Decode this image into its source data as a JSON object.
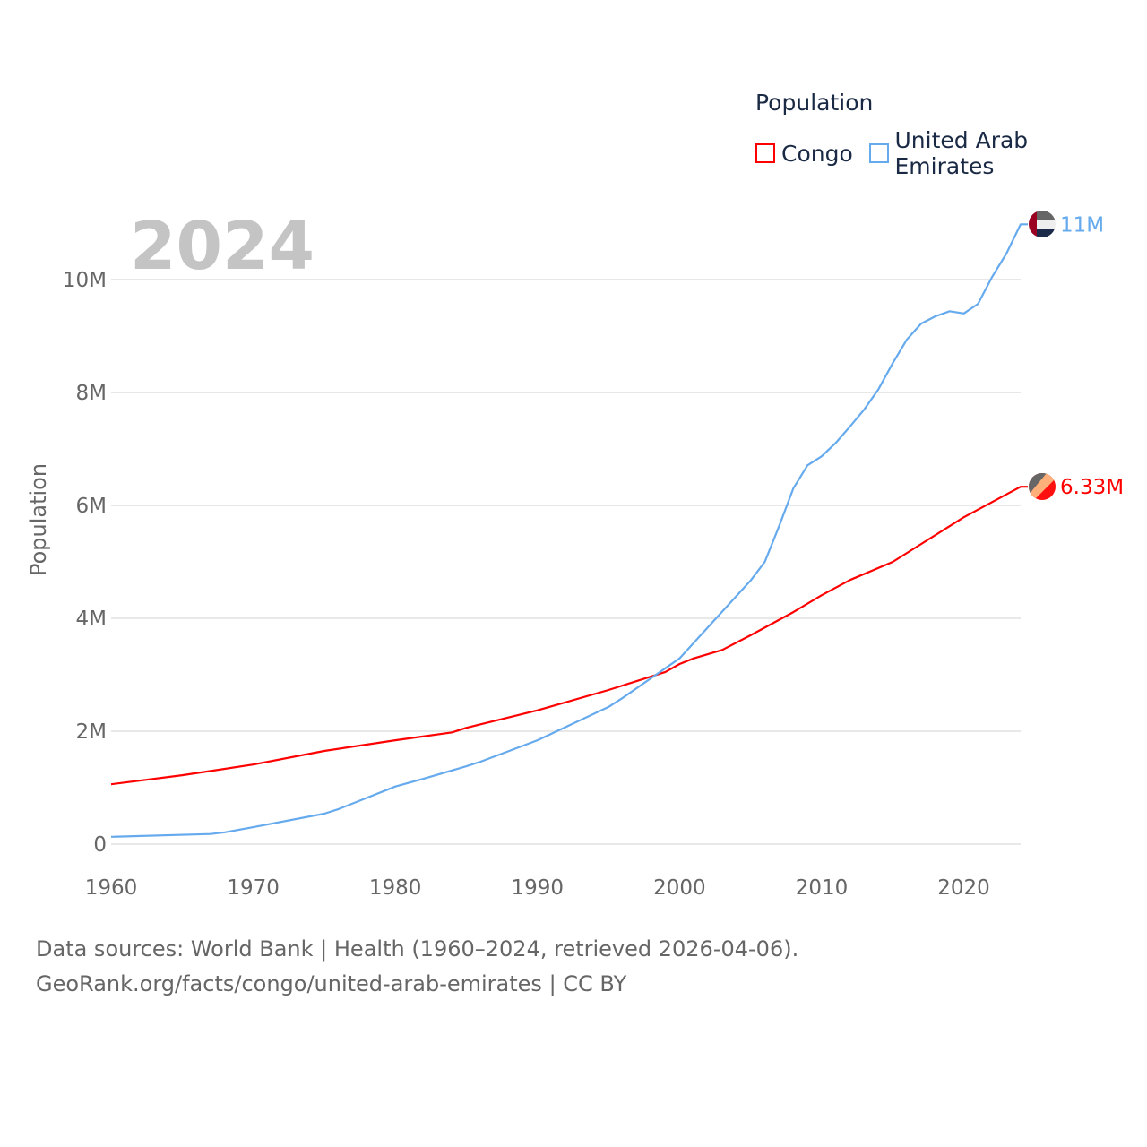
{
  "chart_data": {
    "type": "line",
    "title": "Population",
    "current_year_label": "2024",
    "ylabel": "Population",
    "xlabel": "",
    "xlim": [
      1960,
      2024
    ],
    "ylim": [
      0,
      11000000
    ],
    "x_ticks": [
      "1960",
      "1970",
      "1980",
      "1990",
      "2000",
      "2010",
      "2020"
    ],
    "x_tick_values": [
      1960,
      1970,
      1980,
      1990,
      2000,
      2010,
      2020
    ],
    "y_ticks": [
      "0",
      "2M",
      "4M",
      "6M",
      "8M",
      "10M"
    ],
    "y_tick_values": [
      0,
      2000000,
      4000000,
      6000000,
      8000000,
      10000000
    ],
    "grid": true,
    "legend_position": "top-right",
    "series": [
      {
        "name": "Congo",
        "color": "#ff0000",
        "end_label": "6.33M",
        "x": [
          1960,
          1965,
          1970,
          1975,
          1980,
          1984,
          1985,
          1990,
          1995,
          1999,
          2000,
          2001,
          2003,
          2005,
          2008,
          2010,
          2012,
          2015,
          2020,
          2024
        ],
        "values": [
          1060000,
          1220000,
          1410000,
          1650000,
          1840000,
          1980000,
          2060000,
          2370000,
          2730000,
          3050000,
          3190000,
          3290000,
          3440000,
          3700000,
          4110000,
          4410000,
          4680000,
          5000000,
          5790000,
          6330000
        ]
      },
      {
        "name": "United Arab Emirates",
        "color": "#66aaee",
        "end_label": "11M",
        "x": [
          1960,
          1967,
          1968,
          1970,
          1975,
          1976,
          1980,
          1982,
          1985,
          1986,
          1990,
          1995,
          1996,
          2000,
          2005,
          2006,
          2007,
          2008,
          2009,
          2010,
          2011,
          2012,
          2013,
          2014,
          2015,
          2016,
          2017,
          2018,
          2019,
          2020,
          2021,
          2022,
          2023,
          2024
        ],
        "values": [
          130000,
          180000,
          210000,
          300000,
          540000,
          620000,
          1020000,
          1160000,
          1380000,
          1460000,
          1840000,
          2430000,
          2590000,
          3290000,
          4670000,
          5000000,
          5630000,
          6300000,
          6710000,
          6870000,
          7110000,
          7400000,
          7700000,
          8060000,
          8520000,
          8940000,
          9220000,
          9350000,
          9440000,
          9400000,
          9570000,
          10050000,
          10460000,
          10980000
        ]
      }
    ]
  },
  "footer": {
    "line1": "Data sources: World Bank | Health (1960–2024, retrieved 2026-04-06).",
    "line2": "GeoRank.org/facts/congo/united-arab-emirates | CC BY"
  }
}
